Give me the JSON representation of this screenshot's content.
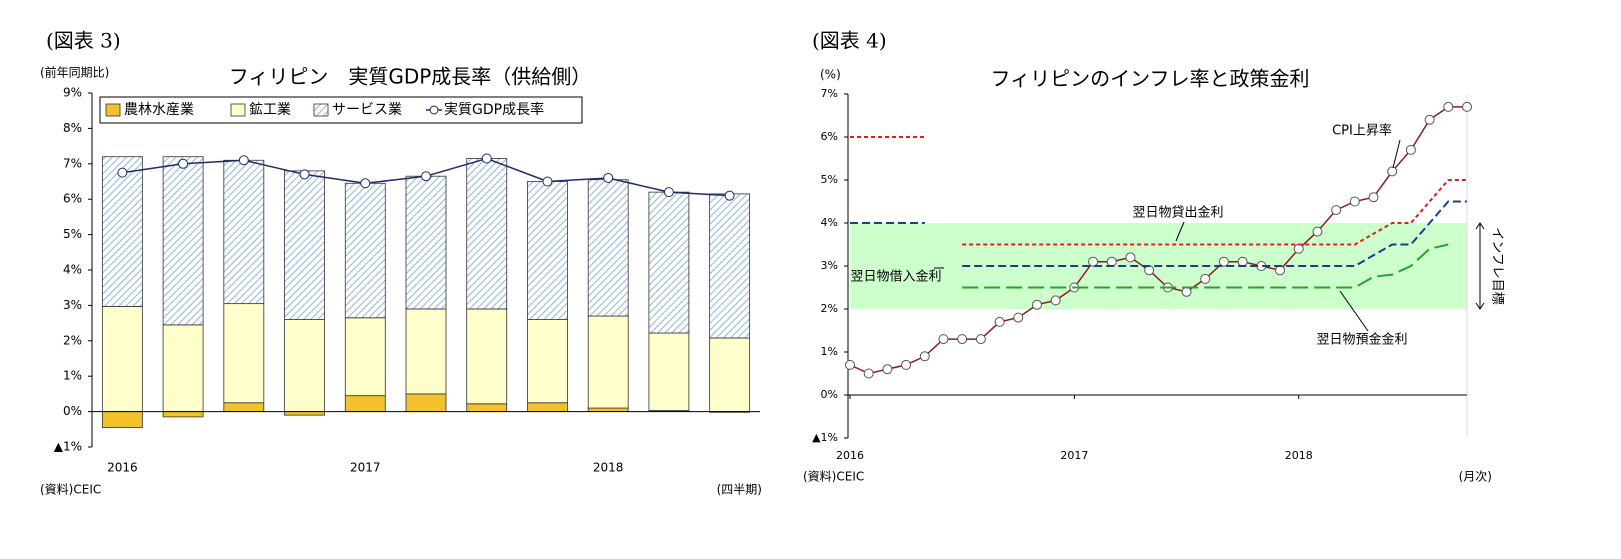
{
  "chart_data": [
    {
      "type": "bar",
      "figure_label": "(図表 3)",
      "title": "フィリピン　実質GDP成長率（供給側）",
      "y_unit": "(前年同期比)",
      "source": "(資料)CEIC",
      "x_unit": "(四半期)",
      "categories": [
        "2016",
        null,
        null,
        null,
        "2017",
        null,
        null,
        null,
        "2018",
        null,
        null
      ],
      "series": [
        {
          "name": "農林水産業",
          "color": "#f2c12e",
          "values": [
            -0.45,
            -0.15,
            0.25,
            -0.1,
            0.45,
            0.5,
            0.22,
            0.25,
            0.1,
            0.03,
            -0.02
          ]
        },
        {
          "name": "鉱工業",
          "color": "#ffffcc",
          "values": [
            2.97,
            2.45,
            2.8,
            2.6,
            2.2,
            2.4,
            2.68,
            2.35,
            2.6,
            2.19,
            2.08
          ]
        },
        {
          "name": "サービス業",
          "color": "#8fb4dc",
          "hatch": true,
          "values": [
            4.23,
            4.75,
            4.05,
            4.2,
            3.8,
            3.75,
            4.25,
            3.9,
            3.85,
            3.98,
            4.07
          ]
        },
        {
          "name": "実質GDP成長率",
          "color": "#1f2a6b",
          "type": "line",
          "values": [
            6.75,
            7.0,
            7.1,
            6.7,
            6.45,
            6.65,
            7.15,
            6.5,
            6.6,
            6.2,
            6.1
          ]
        }
      ],
      "ylim": [
        -1,
        9
      ],
      "yticks": [
        {
          "value": -1,
          "label": "▲1%"
        },
        {
          "value": 0,
          "label": "0%"
        },
        {
          "value": 1,
          "label": "1%"
        },
        {
          "value": 2,
          "label": "2%"
        },
        {
          "value": 3,
          "label": "3%"
        },
        {
          "value": 4,
          "label": "4%"
        },
        {
          "value": 5,
          "label": "5%"
        },
        {
          "value": 6,
          "label": "6%"
        },
        {
          "value": 7,
          "label": "7%"
        },
        {
          "value": 8,
          "label": "8%"
        },
        {
          "value": 9,
          "label": "9%"
        }
      ],
      "legend": "top-left"
    },
    {
      "type": "line",
      "figure_label": "(図表 4)",
      "title": "フィリピンのインフレ率と政策金利",
      "y_unit": "(%)",
      "source": "(資料)CEIC",
      "x_unit": "(月次)",
      "categories": [
        "2016",
        null,
        null,
        null,
        null,
        null,
        null,
        null,
        null,
        null,
        null,
        null,
        "2017",
        null,
        null,
        null,
        null,
        null,
        null,
        null,
        null,
        null,
        null,
        null,
        "2018",
        null,
        null,
        null,
        null,
        null,
        null,
        null,
        null,
        null
      ],
      "series": [
        {
          "name": "CPI上昇率",
          "color": "#8b1c1c",
          "markers": true,
          "values": [
            0.7,
            0.5,
            0.6,
            0.7,
            0.9,
            1.3,
            1.3,
            1.3,
            1.7,
            1.8,
            2.1,
            2.2,
            2.5,
            3.1,
            3.1,
            3.2,
            2.9,
            2.5,
            2.4,
            2.7,
            3.1,
            3.1,
            3.0,
            2.9,
            3.4,
            3.8,
            4.3,
            4.5,
            4.6,
            5.2,
            5.7,
            6.4,
            6.7,
            6.7
          ]
        },
        {
          "name": "翌日物貸出金利",
          "color": "#e0201b",
          "dash": "short",
          "values": [
            6,
            6,
            6,
            6,
            6,
            null,
            3.5,
            3.5,
            3.5,
            3.5,
            3.5,
            3.5,
            3.5,
            3.5,
            3.5,
            3.5,
            3.5,
            3.5,
            3.5,
            3.5,
            3.5,
            3.5,
            3.5,
            3.5,
            3.5,
            3.5,
            3.5,
            3.5,
            3.75,
            4,
            4,
            4.5,
            5,
            5
          ]
        },
        {
          "name": "翌日物借入金利",
          "color": "#1f3c88",
          "dash": "medium",
          "values": [
            4,
            4,
            4,
            4,
            4,
            null,
            3,
            3,
            3,
            3,
            3,
            3,
            3,
            3,
            3,
            3,
            3,
            3,
            3,
            3,
            3,
            3,
            3,
            3,
            3,
            3,
            3,
            3,
            3.25,
            3.5,
            3.5,
            4,
            4.5,
            4.5
          ]
        },
        {
          "name": "翌日物預金金利",
          "color": "#2ca02c",
          "dash": "long",
          "values": [
            null,
            null,
            null,
            null,
            null,
            null,
            2.5,
            2.5,
            2.5,
            2.5,
            2.5,
            2.5,
            2.5,
            2.5,
            2.5,
            2.5,
            2.5,
            2.5,
            2.5,
            2.5,
            2.5,
            2.5,
            2.5,
            2.5,
            2.5,
            2.5,
            2.5,
            2.5,
            2.75,
            2.8,
            3.0,
            3.4,
            3.5,
            null
          ]
        }
      ],
      "target_band": {
        "label": "インフレ目標",
        "values": [
          2,
          4
        ],
        "color": "#ccffcc"
      },
      "ylim": [
        -1,
        7
      ],
      "yticks": [
        {
          "value": -1,
          "label": "▲1%"
        },
        {
          "value": 0,
          "label": "0%"
        },
        {
          "value": 1,
          "label": "1%"
        },
        {
          "value": 2,
          "label": "2%"
        },
        {
          "value": 3,
          "label": "3%"
        },
        {
          "value": 4,
          "label": "4%"
        },
        {
          "value": 5,
          "label": "5%"
        },
        {
          "value": 6,
          "label": "6%"
        },
        {
          "value": 7,
          "label": "7%"
        }
      ]
    }
  ]
}
